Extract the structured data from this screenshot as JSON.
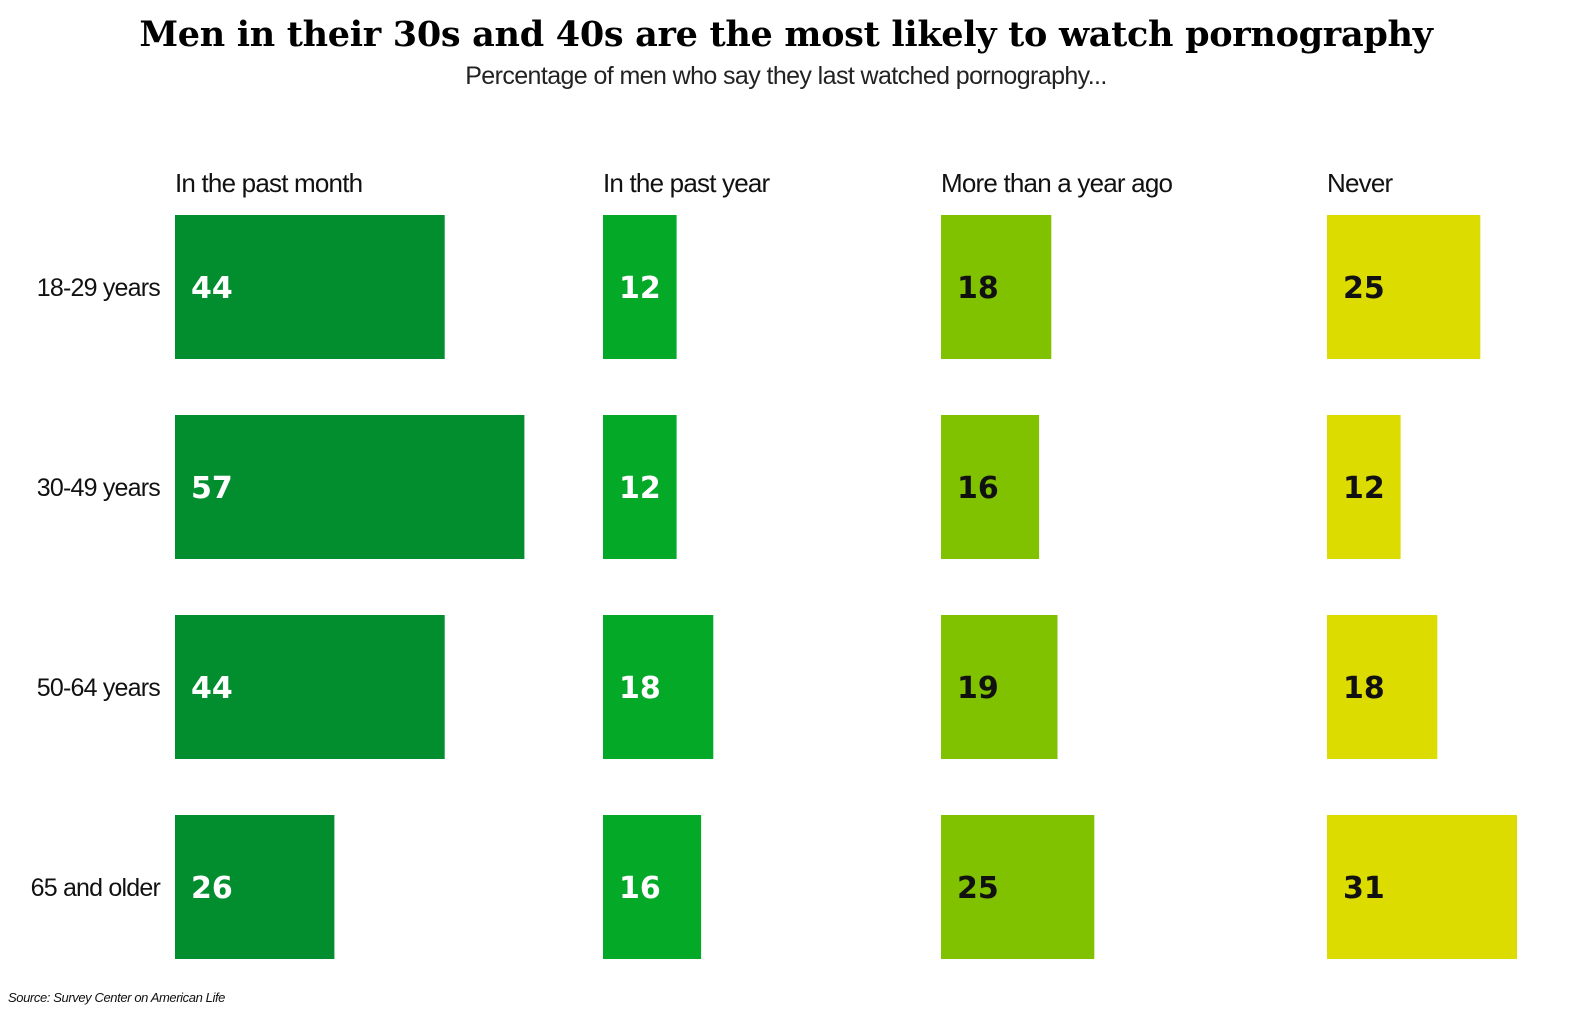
{
  "title": "Men in their 30s and 40s are the most likely to watch pornography",
  "subtitle": "Percentage of men who say they last watched pornography...",
  "source": "Source: Survey Center on American Life",
  "chart_data": {
    "type": "bar",
    "categories": [
      "18-29 years",
      "30-49 years",
      "50-64 years",
      "65 and older"
    ],
    "series": [
      {
        "name": "In the past month",
        "values": [
          44,
          57,
          44,
          26
        ],
        "color": "#028e2e",
        "label_color": "#ffffff"
      },
      {
        "name": "In the past year",
        "values": [
          12,
          12,
          18,
          16
        ],
        "color": "#04a927",
        "label_color": "#ffffff"
      },
      {
        "name": "More than a year ago",
        "values": [
          18,
          16,
          19,
          25
        ],
        "color": "#80c200",
        "label_color": "#111111"
      },
      {
        "name": "Never",
        "values": [
          25,
          12,
          18,
          31
        ],
        "color": "#dcdc00",
        "label_color": "#111111"
      }
    ],
    "orientation": "horizontal",
    "layout": "small-multiples",
    "grid": false,
    "legend": "none"
  }
}
